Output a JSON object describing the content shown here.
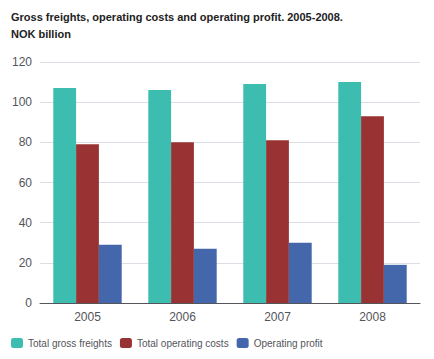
{
  "chart_data": {
    "type": "bar",
    "title": "Gross freights, operating costs and operating profit. 2005-2008.",
    "subtitle": "NOK billion",
    "categories": [
      "2005",
      "2006",
      "2007",
      "2008"
    ],
    "series": [
      {
        "name": "Total gross freights",
        "color": "#3dbdb0",
        "values": [
          107,
          106,
          109,
          110
        ]
      },
      {
        "name": "Total operating costs",
        "color": "#993333",
        "values": [
          79,
          80,
          81,
          93
        ]
      },
      {
        "name": "Operating profit",
        "color": "#4466aa",
        "values": [
          29,
          27,
          30,
          19
        ]
      }
    ],
    "ylim": [
      0,
      120
    ],
    "yticks": [
      0,
      20,
      40,
      60,
      80,
      100,
      120
    ],
    "grid": true,
    "legend": "lower left"
  }
}
